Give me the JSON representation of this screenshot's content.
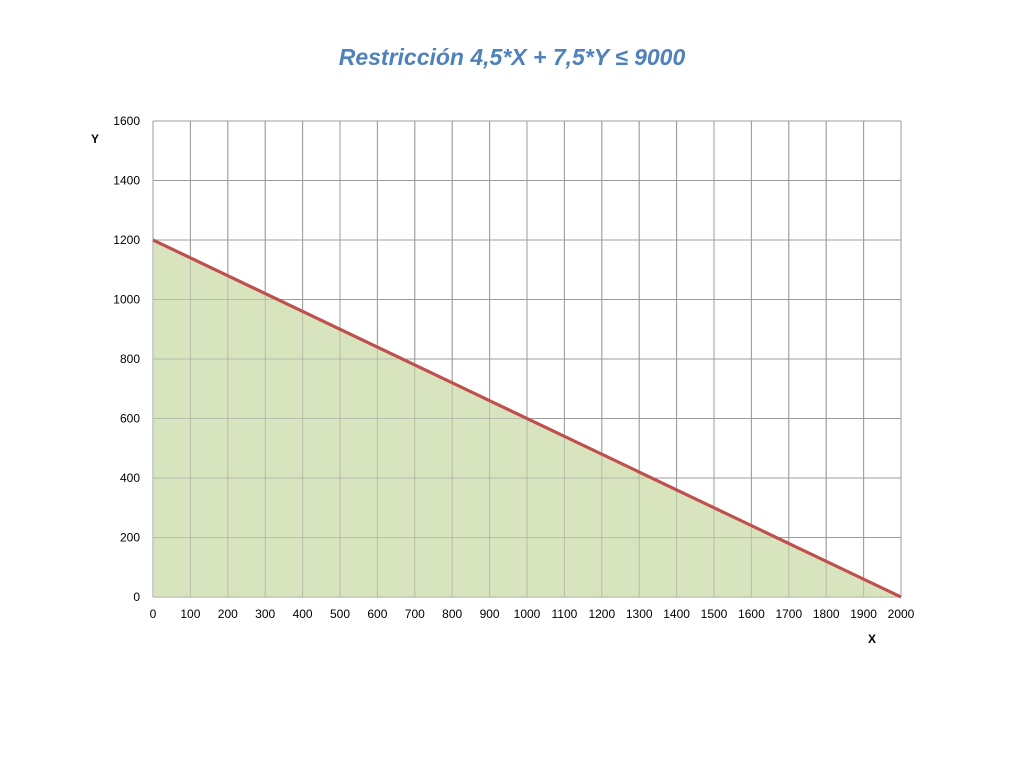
{
  "chart_data": {
    "type": "area",
    "title": "Restricción 4,5*X + 7,5*Y ≤ 9000",
    "xlabel": "X",
    "ylabel": "Y",
    "xlim": [
      0,
      2000
    ],
    "ylim": [
      0,
      1600
    ],
    "x_ticks": [
      0,
      100,
      200,
      300,
      400,
      500,
      600,
      700,
      800,
      900,
      1000,
      1100,
      1200,
      1300,
      1400,
      1500,
      1600,
      1700,
      1800,
      1900,
      2000
    ],
    "y_ticks": [
      0,
      200,
      400,
      600,
      800,
      1000,
      1200,
      1400,
      1600
    ],
    "grid": true,
    "legend": "none",
    "series": [
      {
        "points": [
          [
            0,
            1200
          ],
          [
            2000,
            0
          ]
        ]
      }
    ],
    "colors": {
      "fill": "#d7e4bd",
      "line": "#c0504d",
      "grid": "#9c9c9c",
      "title": "#4f81bd"
    }
  }
}
